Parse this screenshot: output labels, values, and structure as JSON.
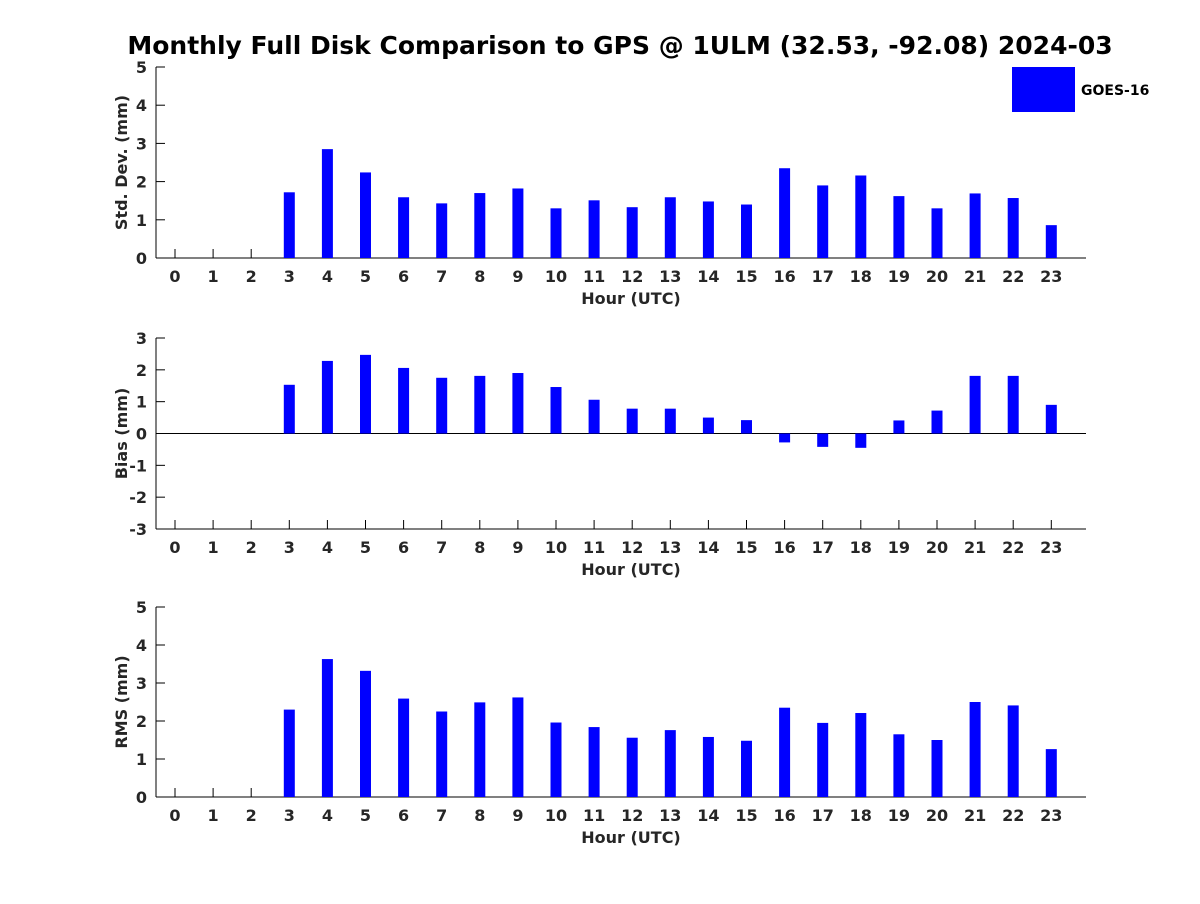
{
  "figure": {
    "title": "Monthly Full Disk Comparison to GPS @ 1ULM (32.53, -92.08) 2024-03"
  },
  "legend": {
    "label": "GOES-16",
    "color": "#0000ff",
    "placement": "top-right"
  },
  "chart_data": [
    {
      "type": "bar",
      "xlabel": "Hour (UTC)",
      "ylabel": "Std. Dev. (mm)",
      "ylim": [
        0,
        5
      ],
      "yticks": [
        0,
        1,
        2,
        3,
        4,
        5
      ],
      "categories": [
        "0",
        "1",
        "2",
        "3",
        "4",
        "5",
        "6",
        "7",
        "8",
        "9",
        "10",
        "11",
        "12",
        "13",
        "14",
        "15",
        "16",
        "17",
        "18",
        "19",
        "20",
        "21",
        "22",
        "23"
      ],
      "series": [
        {
          "name": "GOES-16",
          "values": [
            null,
            null,
            null,
            1.72,
            2.85,
            2.24,
            1.59,
            1.43,
            1.7,
            1.82,
            1.3,
            1.51,
            1.33,
            1.59,
            1.48,
            1.4,
            2.35,
            1.9,
            2.16,
            1.62,
            1.3,
            1.69,
            1.57,
            0.86
          ]
        }
      ],
      "grid": false
    },
    {
      "type": "bar",
      "xlabel": "Hour (UTC)",
      "ylabel": "Bias (mm)",
      "ylim": [
        -3,
        3
      ],
      "yticks": [
        -3,
        -2,
        -1,
        0,
        1,
        2,
        3
      ],
      "categories": [
        "0",
        "1",
        "2",
        "3",
        "4",
        "5",
        "6",
        "7",
        "8",
        "9",
        "10",
        "11",
        "12",
        "13",
        "14",
        "15",
        "16",
        "17",
        "18",
        "19",
        "20",
        "21",
        "22",
        "23"
      ],
      "series": [
        {
          "name": "GOES-16",
          "values": [
            null,
            null,
            null,
            1.53,
            2.28,
            2.47,
            2.06,
            1.75,
            1.81,
            1.9,
            1.46,
            1.06,
            0.78,
            0.78,
            0.5,
            0.42,
            -0.28,
            -0.42,
            -0.45,
            0.41,
            0.72,
            1.81,
            1.81,
            0.9
          ]
        }
      ],
      "grid": false
    },
    {
      "type": "bar",
      "xlabel": "Hour (UTC)",
      "ylabel": "RMS (mm)",
      "ylim": [
        0,
        5
      ],
      "yticks": [
        0,
        1,
        2,
        3,
        4,
        5
      ],
      "categories": [
        "0",
        "1",
        "2",
        "3",
        "4",
        "5",
        "6",
        "7",
        "8",
        "9",
        "10",
        "11",
        "12",
        "13",
        "14",
        "15",
        "16",
        "17",
        "18",
        "19",
        "20",
        "21",
        "22",
        "23"
      ],
      "series": [
        {
          "name": "GOES-16",
          "values": [
            null,
            null,
            null,
            2.3,
            3.63,
            3.32,
            2.59,
            2.25,
            2.49,
            2.62,
            1.96,
            1.84,
            1.56,
            1.76,
            1.58,
            1.48,
            2.35,
            1.95,
            2.21,
            1.65,
            1.5,
            2.5,
            2.41,
            1.26
          ]
        }
      ],
      "grid": false
    }
  ]
}
